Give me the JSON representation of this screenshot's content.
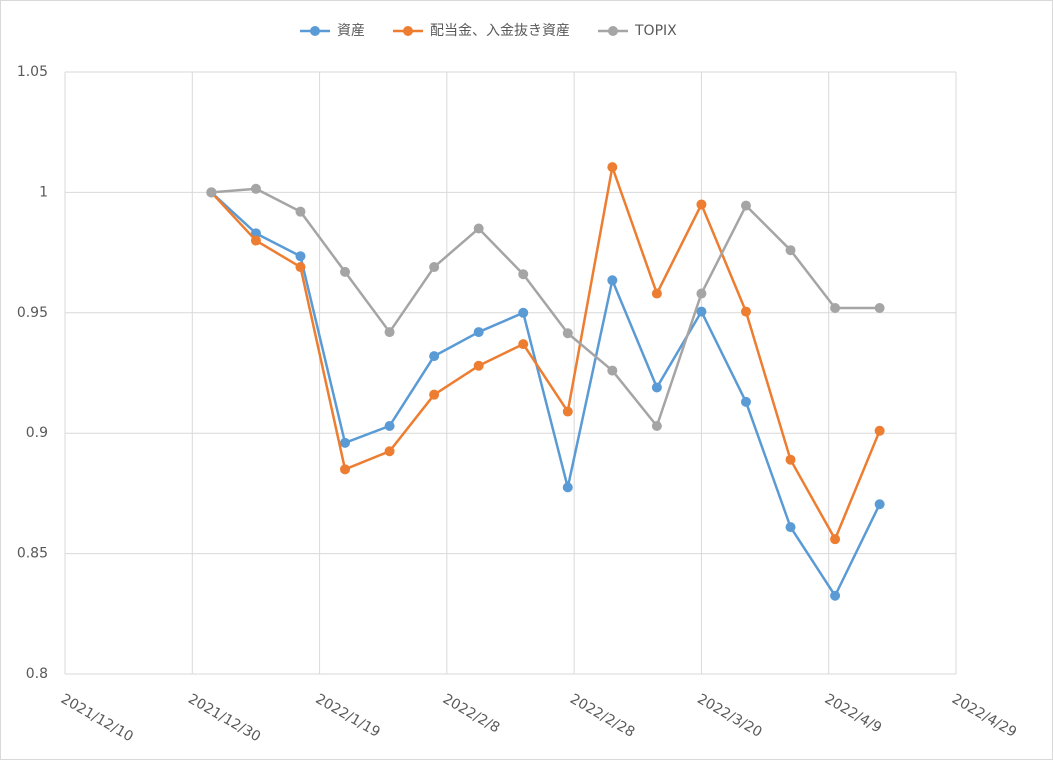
{
  "chart_data": {
    "type": "line",
    "x": [
      "2022/1/2",
      "2022/1/9",
      "2022/1/16",
      "2022/1/23",
      "2022/1/30",
      "2022/2/6",
      "2022/2/13",
      "2022/2/20",
      "2022/2/27",
      "2022/3/6",
      "2022/3/13",
      "2022/3/20",
      "2022/3/27",
      "2022/4/3",
      "2022/4/10",
      "2022/4/17"
    ],
    "series": [
      {
        "name": "資産",
        "color": "#5b9bd5",
        "values": [
          1.0,
          0.983,
          0.9735,
          0.896,
          0.903,
          0.932,
          0.942,
          0.95,
          0.8775,
          0.9635,
          0.919,
          0.9505,
          0.913,
          0.861,
          0.8325,
          0.8705
        ]
      },
      {
        "name": "配当金、入金抜き資産",
        "color": "#ed7d31",
        "values": [
          1.0,
          0.98,
          0.969,
          0.885,
          0.8925,
          0.916,
          0.928,
          0.937,
          0.909,
          1.0105,
          0.958,
          0.995,
          0.9505,
          0.889,
          0.856,
          0.901
        ]
      },
      {
        "name": "TOPIX",
        "color": "#a5a5a5",
        "values": [
          1.0,
          1.0015,
          0.992,
          0.967,
          0.942,
          0.969,
          0.985,
          0.966,
          0.9415,
          0.926,
          0.903,
          0.958,
          0.9945,
          0.976,
          0.952,
          0.952
        ]
      }
    ],
    "xlim": [
      "2021/12/10",
      "2022/4/29"
    ],
    "xticks": [
      "2021/12/10",
      "2021/12/30",
      "2022/1/19",
      "2022/2/8",
      "2022/2/28",
      "2022/3/20",
      "2022/4/9",
      "2022/4/29"
    ],
    "ylim": [
      0.8,
      1.05
    ],
    "yticks": [
      0.8,
      0.85,
      0.9,
      0.95,
      1,
      1.05
    ],
    "grid": true,
    "legend": "top"
  }
}
